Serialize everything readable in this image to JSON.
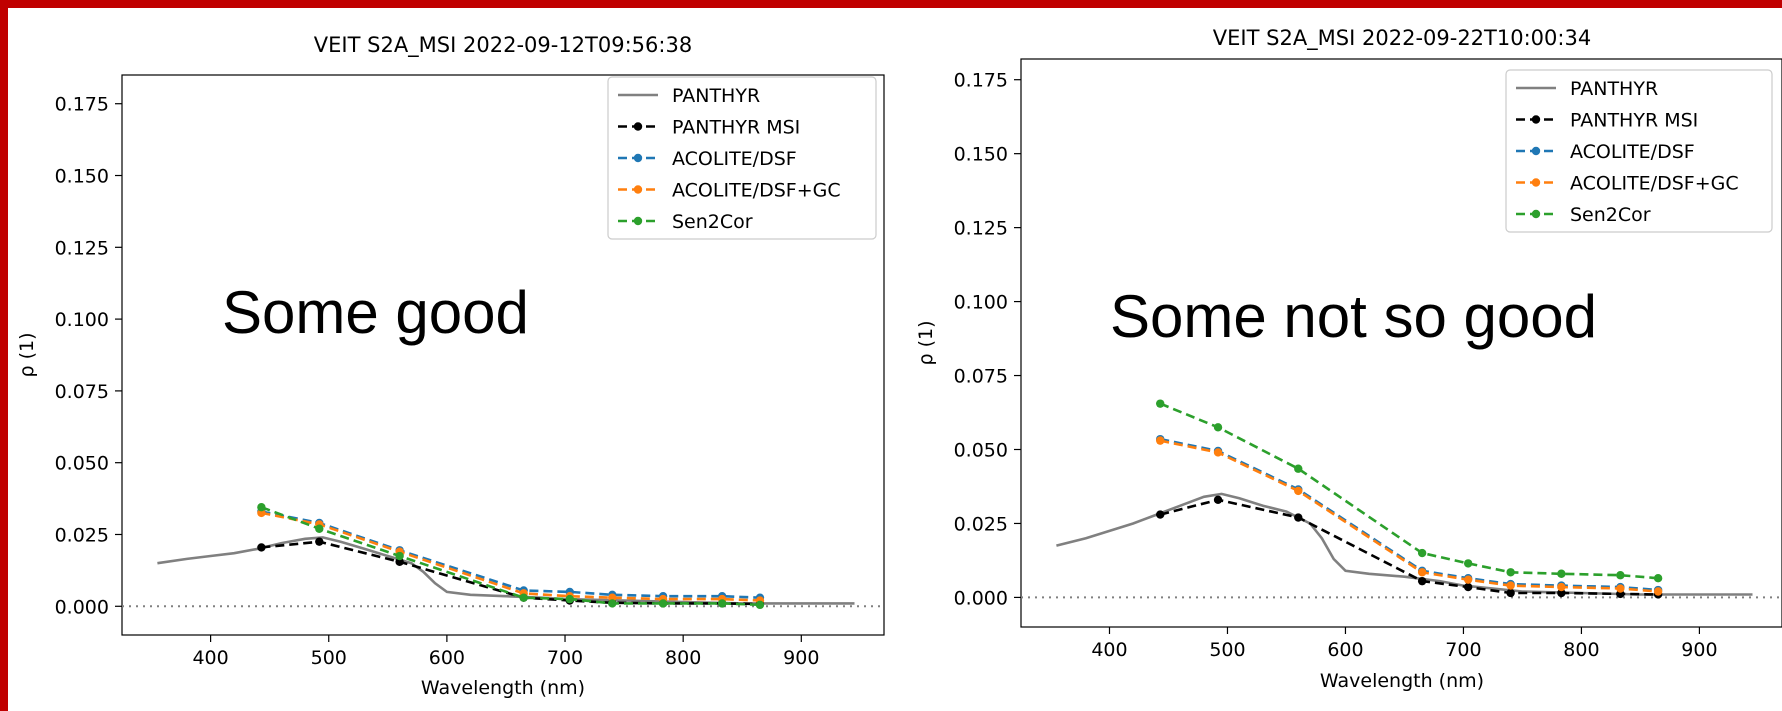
{
  "colors": {
    "frame": "#c00000",
    "PANTHYR": "#808080",
    "PANTHYR MSI": "#000000",
    "ACOLITE/DSF": "#1f77b4",
    "ACOLITE/DSF+GC": "#ff7f0e",
    "Sen2Cor": "#2ca02c"
  },
  "chart_data": [
    {
      "type": "line",
      "title": "VEIT S2A_MSI 2022-09-12T09:56:38",
      "xlabel": "Wavelength (nm)",
      "ylabel": "ρ (1)",
      "annotation": "Some good",
      "xlim": [
        325,
        970
      ],
      "ylim": [
        -0.01,
        0.185
      ],
      "xticks": [
        "400",
        "500",
        "600",
        "700",
        "800",
        "900"
      ],
      "yticks": [
        "0.000",
        "0.025",
        "0.050",
        "0.075",
        "0.100",
        "0.125",
        "0.150",
        "0.175"
      ],
      "reference_line": {
        "y": 0.0,
        "style": "dotted"
      },
      "legend_position": "upper right",
      "series": [
        {
          "name": "PANTHYR",
          "style": "solid",
          "x": [
            355,
            380,
            400,
            420,
            440,
            460,
            480,
            495,
            510,
            530,
            550,
            570,
            580,
            590,
            600,
            620,
            650,
            680,
            700,
            750,
            800,
            850,
            900,
            945
          ],
          "y": [
            0.015,
            0.0165,
            0.0175,
            0.0185,
            0.02,
            0.022,
            0.0235,
            0.024,
            0.0225,
            0.02,
            0.0175,
            0.015,
            0.012,
            0.008,
            0.005,
            0.004,
            0.0035,
            0.003,
            0.0025,
            0.002,
            0.0015,
            0.001,
            0.001,
            0.001
          ]
        },
        {
          "name": "PANTHYR MSI",
          "style": "dashed-dot",
          "x": [
            443,
            492,
            560,
            665,
            704,
            740,
            783,
            833,
            865
          ],
          "y": [
            0.0205,
            0.0225,
            0.0155,
            0.003,
            0.002,
            0.0012,
            0.001,
            0.001,
            0.0008
          ]
        },
        {
          "name": "ACOLITE/DSF",
          "style": "dashed-dot",
          "x": [
            443,
            492,
            560,
            665,
            704,
            740,
            783,
            833,
            865
          ],
          "y": [
            0.033,
            0.029,
            0.0195,
            0.0055,
            0.005,
            0.004,
            0.0035,
            0.0035,
            0.003
          ]
        },
        {
          "name": "ACOLITE/DSF+GC",
          "style": "dashed-dot",
          "x": [
            443,
            492,
            560,
            665,
            704,
            740,
            783,
            833,
            865
          ],
          "y": [
            0.0325,
            0.0285,
            0.019,
            0.0045,
            0.0035,
            0.003,
            0.0025,
            0.0025,
            0.002
          ]
        },
        {
          "name": "Sen2Cor",
          "style": "dashed-dot",
          "x": [
            443,
            492,
            560,
            665,
            704,
            740,
            783,
            833,
            865
          ],
          "y": [
            0.0345,
            0.027,
            0.0175,
            0.003,
            0.0025,
            0.001,
            0.001,
            0.001,
            0.0005
          ]
        }
      ]
    },
    {
      "type": "line",
      "title": "VEIT S2A_MSI 2022-09-22T10:00:34",
      "xlabel": "Wavelength (nm)",
      "ylabel": "ρ (1)",
      "annotation": "Some not so good",
      "xlim": [
        325,
        970
      ],
      "ylim": [
        -0.01,
        0.182
      ],
      "xticks": [
        "400",
        "500",
        "600",
        "700",
        "800",
        "900"
      ],
      "yticks": [
        "0.000",
        "0.025",
        "0.050",
        "0.075",
        "0.100",
        "0.125",
        "0.150",
        "0.175"
      ],
      "reference_line": {
        "y": 0.0,
        "style": "dotted"
      },
      "legend_position": "upper right",
      "series": [
        {
          "name": "PANTHYR",
          "style": "solid",
          "x": [
            355,
            380,
            400,
            420,
            440,
            460,
            480,
            495,
            510,
            530,
            550,
            570,
            580,
            590,
            600,
            620,
            650,
            680,
            700,
            750,
            800,
            850,
            900,
            945
          ],
          "y": [
            0.0175,
            0.02,
            0.0225,
            0.025,
            0.028,
            0.031,
            0.034,
            0.035,
            0.0335,
            0.031,
            0.029,
            0.025,
            0.02,
            0.013,
            0.009,
            0.008,
            0.007,
            0.0055,
            0.004,
            0.002,
            0.0015,
            0.001,
            0.001,
            0.001
          ]
        },
        {
          "name": "PANTHYR MSI",
          "style": "dashed-dot",
          "x": [
            443,
            492,
            560,
            665,
            704,
            740,
            783,
            833,
            865
          ],
          "y": [
            0.028,
            0.033,
            0.027,
            0.0055,
            0.0035,
            0.0015,
            0.0015,
            0.0012,
            0.001
          ]
        },
        {
          "name": "ACOLITE/DSF",
          "style": "dashed-dot",
          "x": [
            443,
            492,
            560,
            665,
            704,
            740,
            783,
            833,
            865
          ],
          "y": [
            0.0535,
            0.0495,
            0.0365,
            0.009,
            0.0065,
            0.0045,
            0.004,
            0.0035,
            0.0025
          ]
        },
        {
          "name": "ACOLITE/DSF+GC",
          "style": "dashed-dot",
          "x": [
            443,
            492,
            560,
            665,
            704,
            740,
            783,
            833,
            865
          ],
          "y": [
            0.053,
            0.049,
            0.036,
            0.0085,
            0.006,
            0.004,
            0.0035,
            0.003,
            0.002
          ]
        },
        {
          "name": "Sen2Cor",
          "style": "dashed-dot",
          "x": [
            443,
            492,
            560,
            665,
            704,
            740,
            783,
            833,
            865
          ],
          "y": [
            0.0655,
            0.0575,
            0.0435,
            0.015,
            0.0115,
            0.0085,
            0.008,
            0.0075,
            0.0065
          ]
        }
      ]
    }
  ]
}
